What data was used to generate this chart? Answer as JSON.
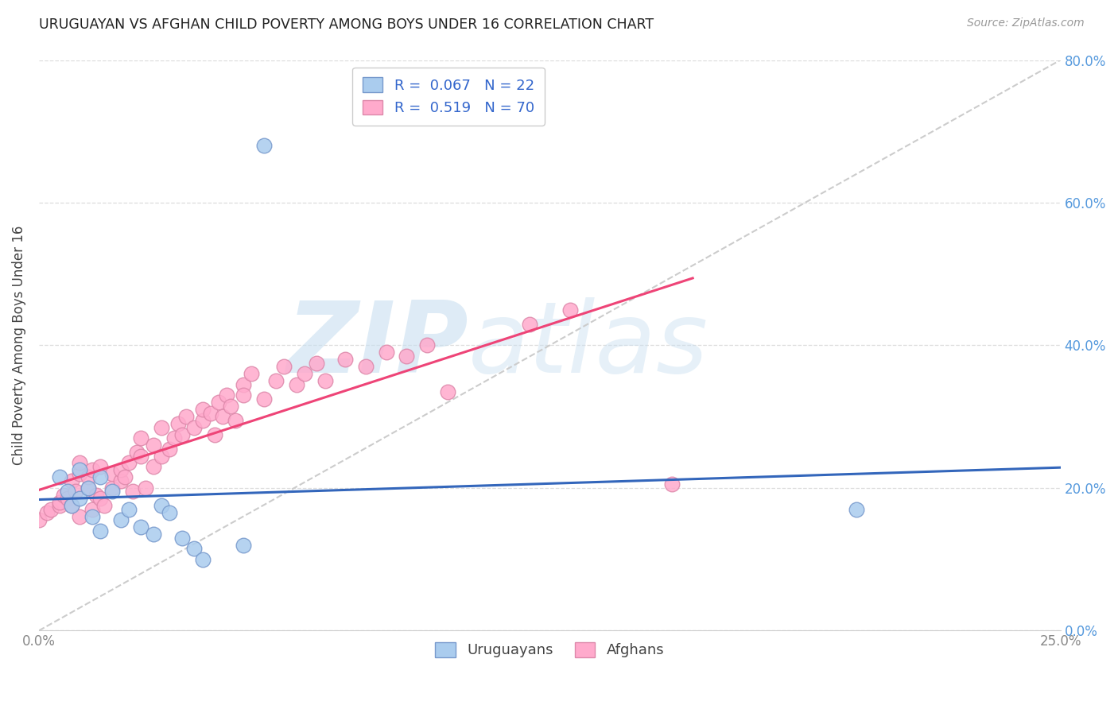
{
  "title": "URUGUAYAN VS AFGHAN CHILD POVERTY AMONG BOYS UNDER 16 CORRELATION CHART",
  "source": "Source: ZipAtlas.com",
  "ylabel": "Child Poverty Among Boys Under 16",
  "xlim": [
    0.0,
    0.25
  ],
  "ylim": [
    0.0,
    0.8
  ],
  "xticks": [
    0.0,
    0.025,
    0.05,
    0.075,
    0.1,
    0.125,
    0.15,
    0.175,
    0.2,
    0.225,
    0.25
  ],
  "xtick_labels_show": {
    "0.0": "0.0%",
    "0.25": "25.0%"
  },
  "yticks": [
    0.0,
    0.2,
    0.4,
    0.6,
    0.8
  ],
  "yticklabels_right": [
    "0.0%",
    "20.0%",
    "40.0%",
    "60.0%",
    "80.0%"
  ],
  "uruguayan_x": [
    0.005,
    0.007,
    0.008,
    0.01,
    0.01,
    0.012,
    0.013,
    0.015,
    0.015,
    0.018,
    0.02,
    0.022,
    0.025,
    0.028,
    0.03,
    0.032,
    0.035,
    0.038,
    0.04,
    0.05,
    0.2,
    0.055
  ],
  "uruguayan_y": [
    0.215,
    0.195,
    0.175,
    0.225,
    0.185,
    0.2,
    0.16,
    0.14,
    0.215,
    0.195,
    0.155,
    0.17,
    0.145,
    0.135,
    0.175,
    0.165,
    0.13,
    0.115,
    0.1,
    0.12,
    0.17,
    0.68
  ],
  "afghan_x": [
    0.0,
    0.002,
    0.003,
    0.005,
    0.005,
    0.006,
    0.007,
    0.008,
    0.008,
    0.009,
    0.01,
    0.01,
    0.01,
    0.012,
    0.012,
    0.013,
    0.013,
    0.014,
    0.015,
    0.015,
    0.016,
    0.018,
    0.018,
    0.02,
    0.02,
    0.021,
    0.022,
    0.023,
    0.024,
    0.025,
    0.025,
    0.026,
    0.028,
    0.028,
    0.03,
    0.03,
    0.032,
    0.033,
    0.034,
    0.035,
    0.036,
    0.038,
    0.04,
    0.04,
    0.042,
    0.043,
    0.044,
    0.045,
    0.046,
    0.047,
    0.048,
    0.05,
    0.05,
    0.052,
    0.055,
    0.058,
    0.06,
    0.063,
    0.065,
    0.068,
    0.07,
    0.075,
    0.08,
    0.085,
    0.09,
    0.095,
    0.1,
    0.12,
    0.13,
    0.155
  ],
  "afghan_y": [
    0.155,
    0.165,
    0.17,
    0.175,
    0.18,
    0.19,
    0.185,
    0.175,
    0.21,
    0.195,
    0.16,
    0.22,
    0.235,
    0.2,
    0.215,
    0.17,
    0.225,
    0.19,
    0.185,
    0.23,
    0.175,
    0.2,
    0.22,
    0.21,
    0.225,
    0.215,
    0.235,
    0.195,
    0.25,
    0.245,
    0.27,
    0.2,
    0.23,
    0.26,
    0.245,
    0.285,
    0.255,
    0.27,
    0.29,
    0.275,
    0.3,
    0.285,
    0.295,
    0.31,
    0.305,
    0.275,
    0.32,
    0.3,
    0.33,
    0.315,
    0.295,
    0.345,
    0.33,
    0.36,
    0.325,
    0.35,
    0.37,
    0.345,
    0.36,
    0.375,
    0.35,
    0.38,
    0.37,
    0.39,
    0.385,
    0.4,
    0.335,
    0.43,
    0.45,
    0.205
  ],
  "uruguayan_color": "#aaccee",
  "afghan_color": "#ffaacc",
  "uruguayan_edge": "#7799cc",
  "afghan_edge": "#dd88aa",
  "uruguayan_R": 0.067,
  "uruguayan_N": 22,
  "afghan_R": 0.519,
  "afghan_N": 70,
  "watermark_zip": "ZIP",
  "watermark_atlas": "atlas",
  "legend_label_1": "Uruguayans",
  "legend_label_2": "Afghans",
  "background_color": "#ffffff",
  "grid_color": "#dddddd",
  "uru_line_color": "#3366bb",
  "afg_line_color": "#ee4477",
  "diag_color": "#cccccc"
}
